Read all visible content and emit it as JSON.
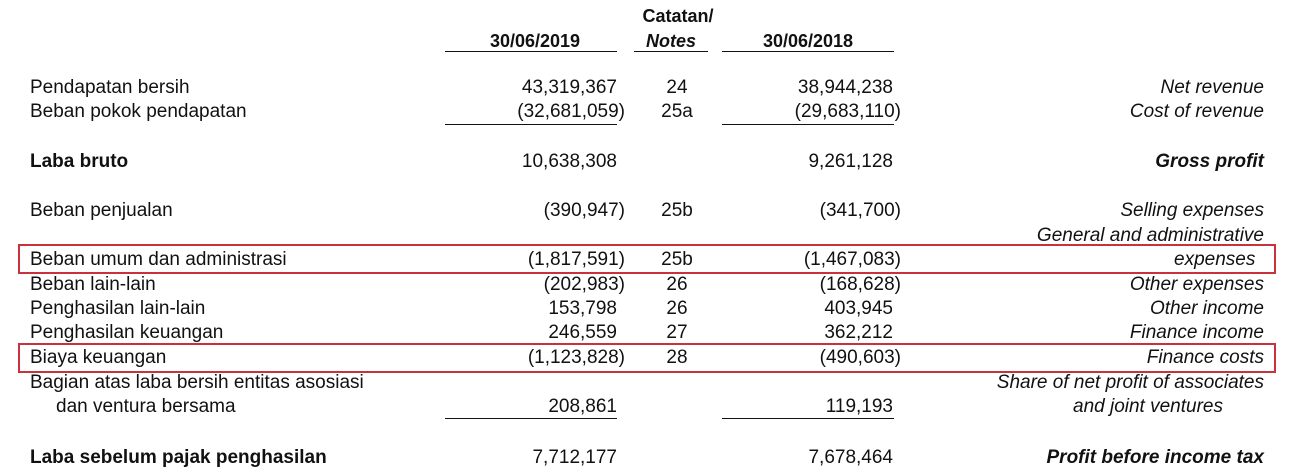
{
  "colors": {
    "highlight_box": "#c8323c",
    "text": "#111111"
  },
  "header": {
    "col_2019": "30/06/2019",
    "notes_id": "Catatan/",
    "notes_en": "Notes",
    "col_2018": "30/06/2018"
  },
  "rows": [
    {
      "id": "Pendapatan bersih",
      "v2019": "43,319,367",
      "note": "24",
      "v2018": "38,944,238",
      "en": "Net revenue"
    },
    {
      "id": "Beban pokok pendapatan",
      "v2019": "(32,681,059)",
      "note": "25a",
      "v2018": "(29,683,110)",
      "en": "Cost of revenue"
    },
    {
      "id": "Laba bruto",
      "v2019": "10,638,308",
      "note": "",
      "v2018": "9,261,128",
      "en": "Gross profit"
    },
    {
      "id": "Beban penjualan",
      "v2019": "(390,947)",
      "note": "25b",
      "v2018": "(341,700)",
      "en": "Selling expenses"
    },
    {
      "id": "Beban umum dan administrasi",
      "v2019": "(1,817,591)",
      "note": "25b",
      "v2018": "(1,467,083)",
      "en": "General and administrative",
      "en2": "expenses"
    },
    {
      "id": "Beban lain-lain",
      "v2019": "(202,983)",
      "note": "26",
      "v2018": "(168,628)",
      "en": "Other expenses"
    },
    {
      "id": "Penghasilan lain-lain",
      "v2019": "153,798",
      "note": "26",
      "v2018": "403,945",
      "en": "Other income"
    },
    {
      "id": "Penghasilan keuangan",
      "v2019": "246,559",
      "note": "27",
      "v2018": "362,212",
      "en": "Finance income"
    },
    {
      "id": "Biaya keuangan",
      "v2019": "(1,123,828)",
      "note": "28",
      "v2018": "(490,603)",
      "en": "Finance costs"
    },
    {
      "id": "Bagian atas laba bersih entitas asosiasi",
      "id2": "dan ventura bersama",
      "v2019": "208,861",
      "note": "",
      "v2018": "119,193",
      "en": "Share of net profit of associates",
      "en2": "and joint ventures"
    },
    {
      "id": "Laba sebelum pajak penghasilan",
      "v2019": "7,712,177",
      "note": "",
      "v2018": "7,678,464",
      "en": "Profit before income tax"
    }
  ]
}
